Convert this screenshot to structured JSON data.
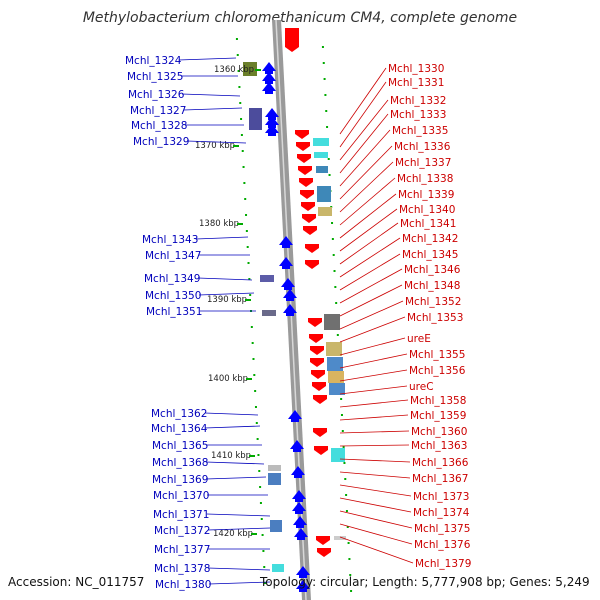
{
  "title": "Methylobacterium chloromethanicum CM4, complete genome",
  "footer": {
    "accession": "Accession: NC_011757",
    "topology": "Topology: circular; Length: 5,777,908 bp; Genes: 5,249"
  },
  "colors": {
    "forward_gene": "#0000ff",
    "reverse_gene": "#ff0000",
    "forward_label": "#0000bb",
    "reverse_label": "#cc0000",
    "tick": "#00aa00",
    "backbone": "#999999"
  },
  "ticks": [
    "1360 kbp",
    "1370 kbp",
    "1380 kbp",
    "1390 kbp",
    "1400 kbp",
    "1410 kbp",
    "1420 kbp"
  ],
  "forward_genes": [
    "Mchl_1324",
    "Mchl_1325",
    "Mchl_1326",
    "Mchl_1327",
    "Mchl_1328",
    "Mchl_1329",
    "Mchl_1343",
    "Mchl_1347",
    "Mchl_1349",
    "Mchl_1350",
    "Mchl_1351",
    "Mchl_1362",
    "Mchl_1364",
    "Mchl_1365",
    "Mchl_1368",
    "Mchl_1369",
    "Mchl_1370",
    "Mchl_1371",
    "Mchl_1372",
    "Mchl_1377",
    "Mchl_1378",
    "Mchl_1380"
  ],
  "reverse_genes": [
    "Mchl_1330",
    "Mchl_1331",
    "Mchl_1332",
    "Mchl_1333",
    "Mchl_1335",
    "Mchl_1336",
    "Mchl_1337",
    "Mchl_1338",
    "Mchl_1339",
    "Mchl_1340",
    "Mchl_1341",
    "Mchl_1342",
    "Mchl_1345",
    "Mchl_1346",
    "Mchl_1348",
    "Mchl_1352",
    "Mchl_1353",
    "ureE",
    "Mchl_1355",
    "Mchl_1356",
    "ureC",
    "Mchl_1358",
    "Mchl_1359",
    "Mchl_1360",
    "Mchl_1363",
    "Mchl_1366",
    "Mchl_1367",
    "Mchl_1373",
    "Mchl_1374",
    "Mchl_1375",
    "Mchl_1376",
    "Mchl_1379"
  ]
}
